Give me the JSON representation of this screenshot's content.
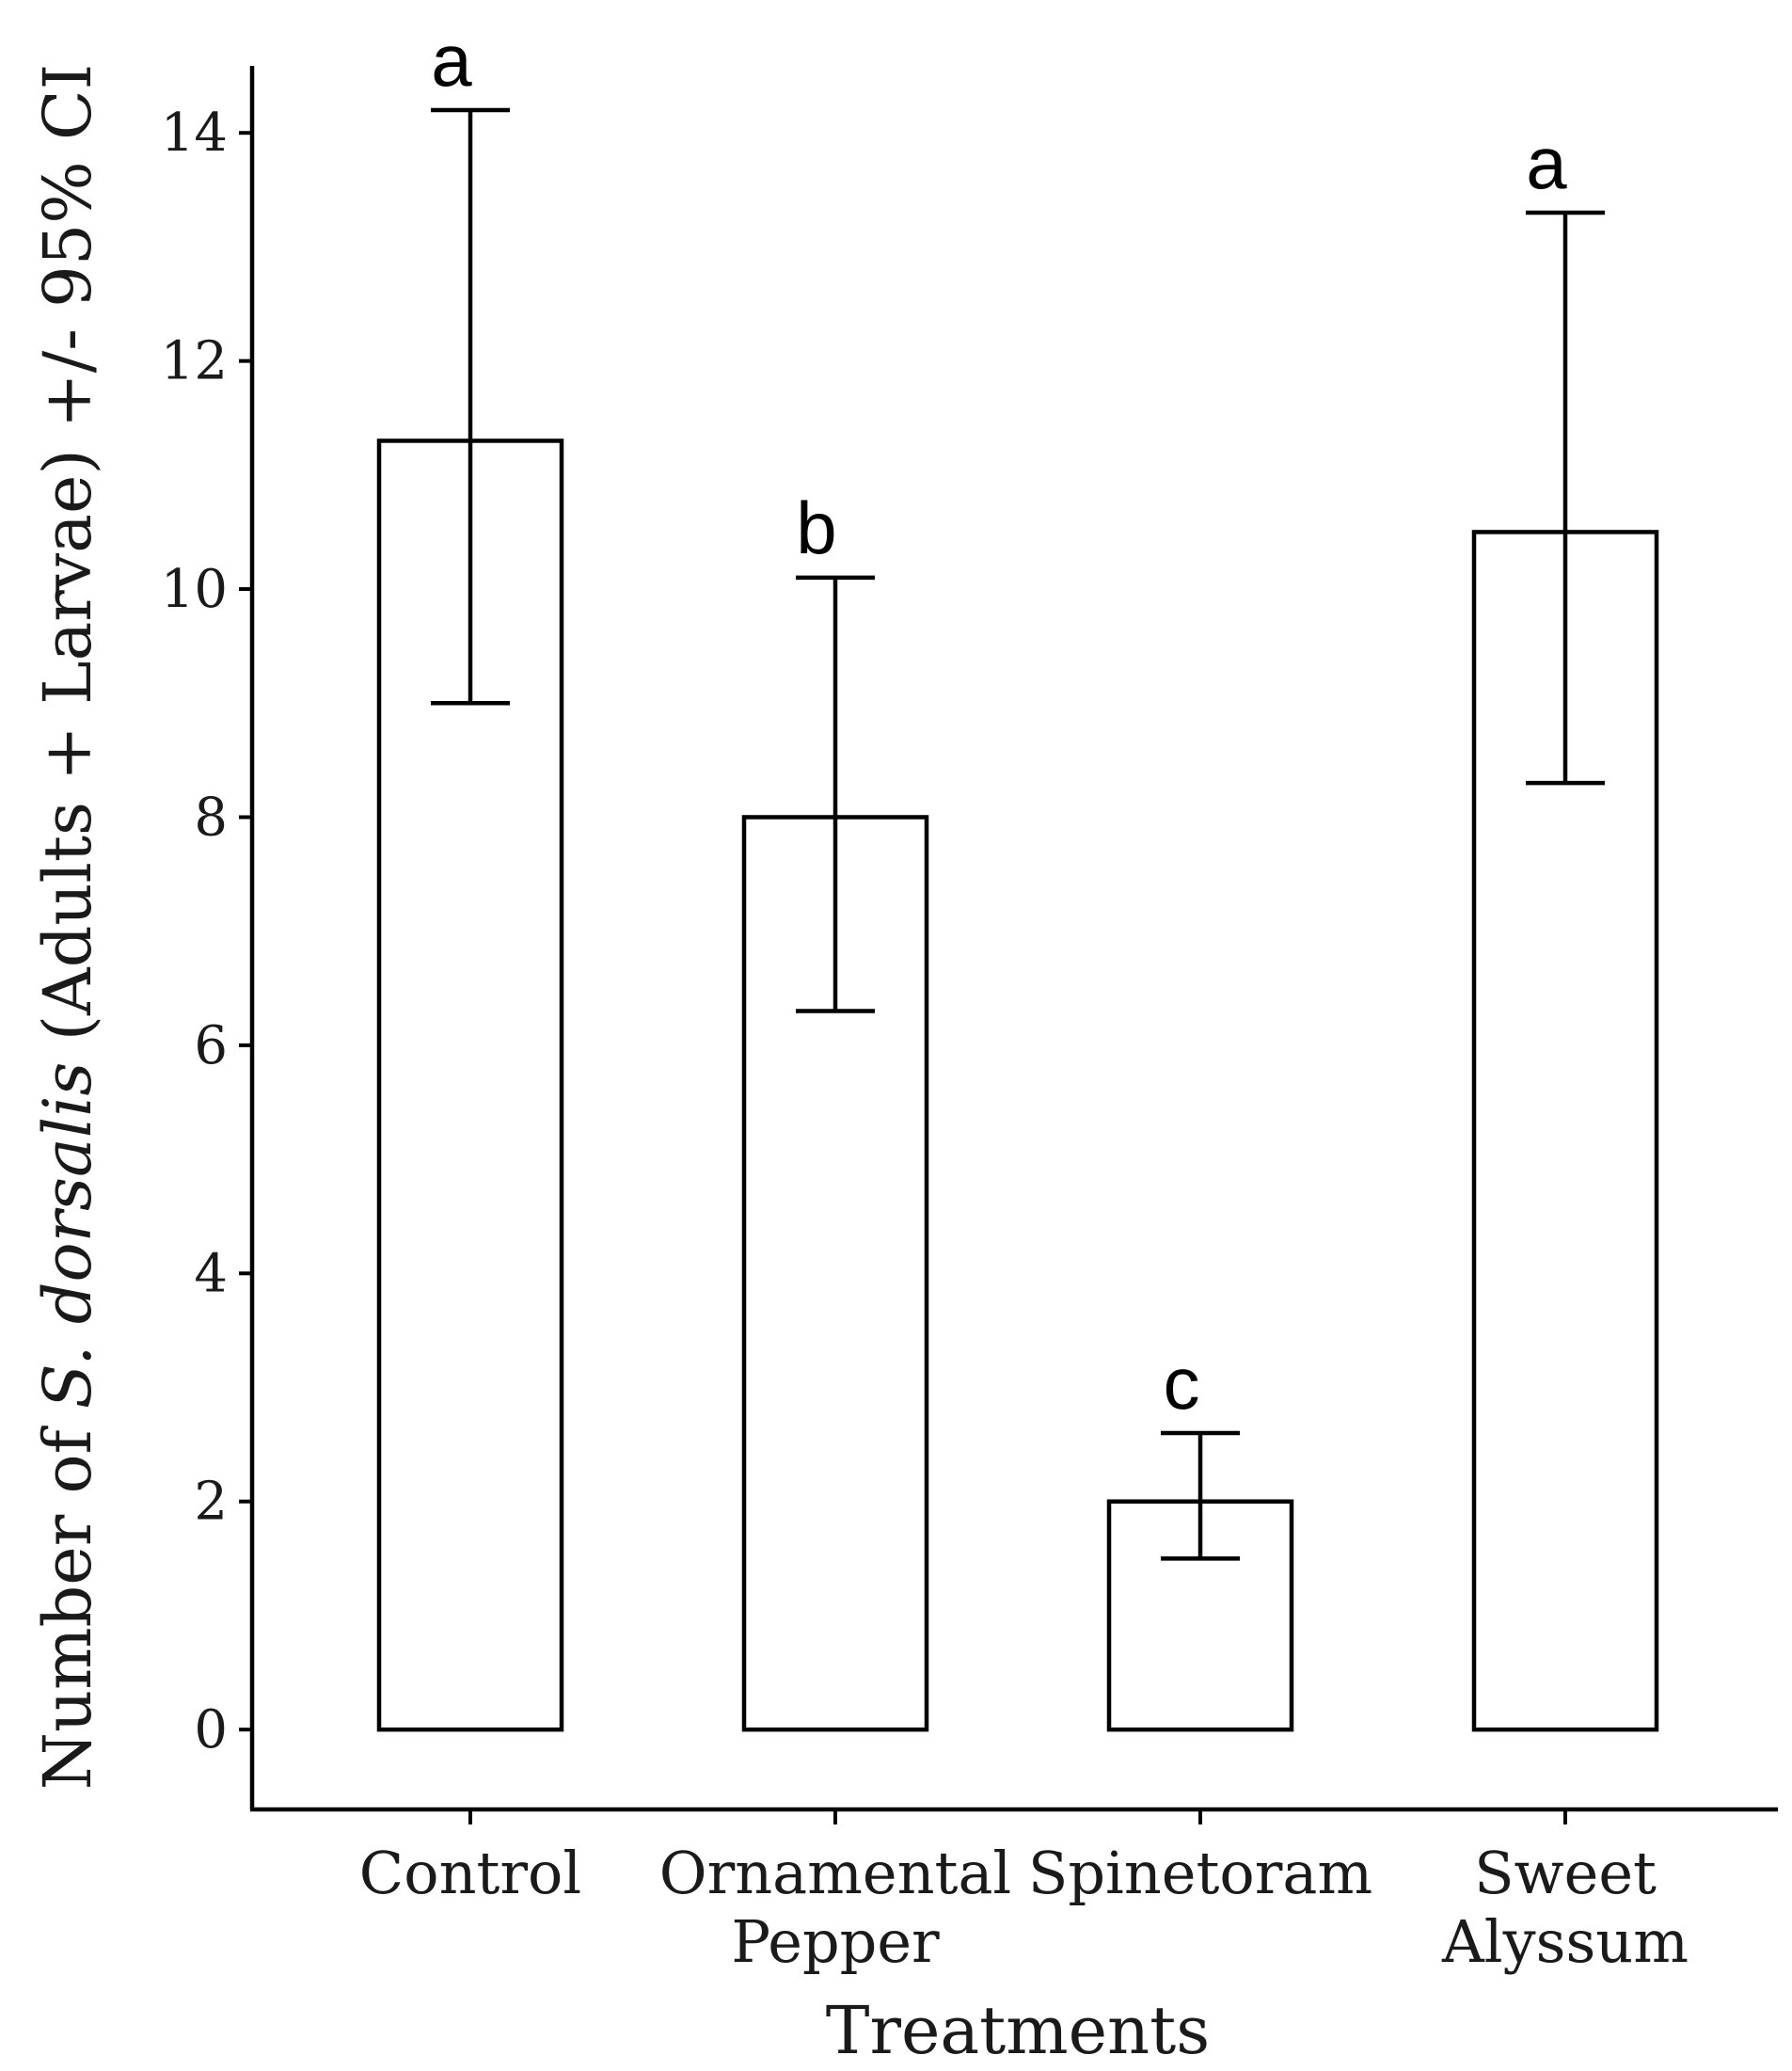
{
  "chart_data": {
    "type": "bar",
    "title": "",
    "xlabel": "Treatments",
    "ylabel": {
      "prefix": "Number of ",
      "italic": "S. dorsalis",
      "suffix": " (Adults + Larvae) +/- 95% CI"
    },
    "ylim": [
      -0.7,
      15
    ],
    "yticks": [
      0,
      2,
      4,
      6,
      8,
      10,
      12,
      14
    ],
    "categories": [
      {
        "label_lines": [
          "Control"
        ],
        "value": 11.3,
        "ci_low": 9.0,
        "ci_high": 14.2,
        "group": "a"
      },
      {
        "label_lines": [
          "Ornamental",
          "Pepper"
        ],
        "value": 8.0,
        "ci_low": 6.3,
        "ci_high": 10.1,
        "group": "b"
      },
      {
        "label_lines": [
          "Spinetoram"
        ],
        "value": 2.0,
        "ci_low": 1.5,
        "ci_high": 2.6,
        "group": "c"
      },
      {
        "label_lines": [
          "Sweet",
          "Alyssum"
        ],
        "value": 10.5,
        "ci_low": 8.3,
        "ci_high": 13.3,
        "group": "a"
      }
    ],
    "colors": {
      "bar_fill": "#ffffff",
      "stroke": "#000000"
    }
  }
}
